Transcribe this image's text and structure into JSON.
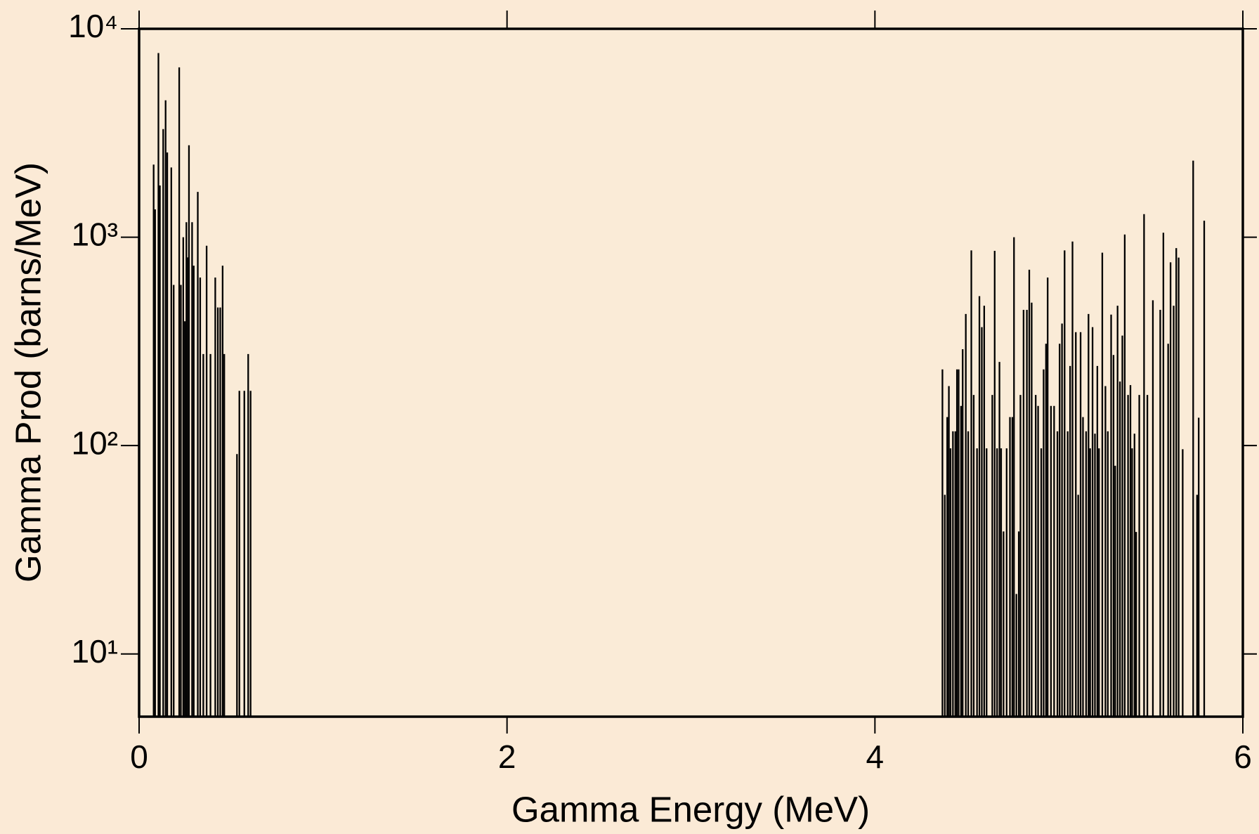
{
  "chart_data": {
    "type": "stem",
    "xlabel": "Gamma Energy (MeV)",
    "ylabel": "Gamma Prod (barns/MeV)",
    "yscale": "log",
    "color": "#000000",
    "xlim": [
      0,
      6
    ],
    "xticks": [
      0,
      2,
      4,
      6
    ],
    "ylim": [
      5,
      10000
    ],
    "yticks": [
      {
        "value": 10,
        "label": "10¹"
      },
      {
        "value": 100,
        "label": "10²"
      },
      {
        "value": 1000,
        "label": "10³"
      },
      {
        "value": 10000,
        "label": "10⁴"
      }
    ],
    "x": [
      0.079,
      0.087,
      0.105,
      0.113,
      0.131,
      0.144,
      0.153,
      0.175,
      0.188,
      0.218,
      0.227,
      0.24,
      0.249,
      0.257,
      0.266,
      0.271,
      0.288,
      0.297,
      0.319,
      0.332,
      0.349,
      0.367,
      0.388,
      0.414,
      0.428,
      0.441,
      0.454,
      0.463,
      0.532,
      0.545,
      0.572,
      0.593,
      0.606,
      4.367,
      4.38,
      4.393,
      4.402,
      4.411,
      4.424,
      4.437,
      4.446,
      4.455,
      4.468,
      4.477,
      4.494,
      4.507,
      4.524,
      4.537,
      4.555,
      4.568,
      4.581,
      4.594,
      4.607,
      4.638,
      4.651,
      4.664,
      4.677,
      4.686,
      4.699,
      4.716,
      4.734,
      4.747,
      4.756,
      4.769,
      4.782,
      4.791,
      4.808,
      4.826,
      4.839,
      4.852,
      4.874,
      4.887,
      4.904,
      4.917,
      4.93,
      4.939,
      4.957,
      4.974,
      4.992,
      5.004,
      5.017,
      5.031,
      5.048,
      5.061,
      5.074,
      5.092,
      5.105,
      5.118,
      5.131,
      5.148,
      5.161,
      5.17,
      5.183,
      5.196,
      5.209,
      5.218,
      5.236,
      5.253,
      5.266,
      5.284,
      5.297,
      5.306,
      5.319,
      5.332,
      5.345,
      5.358,
      5.376,
      5.389,
      5.398,
      5.411,
      5.42,
      5.437,
      5.463,
      5.481,
      5.511,
      5.551,
      5.568,
      5.594,
      5.607,
      5.624,
      5.638,
      5.651,
      5.673,
      5.73,
      5.751,
      5.76,
      5.79
    ],
    "values": [
      2230,
      1360,
      7650,
      1770,
      3300,
      4540,
      2550,
      2160,
      590,
      6530,
      590,
      1000,
      395,
      1180,
      800,
      2760,
      1180,
      730,
      1650,
      640,
      275,
      910,
      275,
      640,
      460,
      460,
      730,
      275,
      91,
      183,
      183,
      275,
      183,
      232,
      58,
      137,
      193,
      97,
      117,
      117,
      232,
      232,
      155,
      290,
      428,
      117,
      864,
      175,
      97,
      521,
      370,
      469,
      97,
      175,
      860,
      97,
      252,
      97,
      38.7,
      97,
      137,
      137,
      1000,
      19.4,
      38.7,
      175,
      448,
      448,
      698,
      485,
      175,
      155,
      97,
      232,
      308,
      640,
      155,
      155,
      117,
      308,
      385,
      864,
      117,
      241,
      953,
      350,
      58,
      350,
      137,
      117,
      428,
      97,
      370,
      114,
      241,
      97,
      843,
      193,
      117,
      425,
      272,
      80,
      469,
      203,
      337,
      1030,
      175,
      195,
      97,
      114,
      38.5,
      175,
      1290,
      175,
      498,
      448,
      1050,
      308,
      757,
      469,
      886,
      798,
      96,
      2330,
      58,
      136,
      1200
    ]
  }
}
